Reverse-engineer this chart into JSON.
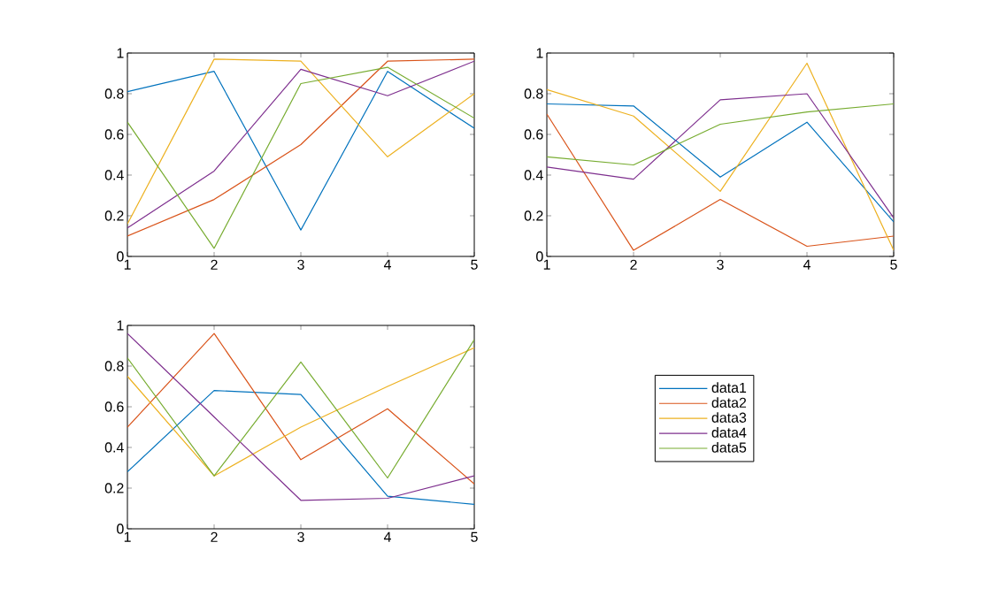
{
  "chart_data": [
    {
      "type": "line",
      "x": [
        1,
        2,
        3,
        4,
        5
      ],
      "xlim": [
        1,
        5
      ],
      "ylim": [
        0,
        1
      ],
      "xticks": [
        1,
        2,
        3,
        4,
        5
      ],
      "yticks": [
        0,
        0.2,
        0.4,
        0.6,
        0.8,
        1
      ],
      "line_style": "solid",
      "series": [
        {
          "color": "#0072bd",
          "values": [
            0.81,
            0.91,
            0.13,
            0.91,
            0.63
          ]
        },
        {
          "color": "#d95319",
          "values": [
            0.1,
            0.28,
            0.55,
            0.96,
            0.97
          ]
        },
        {
          "color": "#edb120",
          "values": [
            0.16,
            0.97,
            0.96,
            0.49,
            0.8
          ]
        },
        {
          "color": "#7e2f8e",
          "values": [
            0.14,
            0.42,
            0.92,
            0.79,
            0.96
          ]
        },
        {
          "color": "#77ac30",
          "values": [
            0.66,
            0.04,
            0.85,
            0.93,
            0.68
          ]
        }
      ]
    },
    {
      "type": "line",
      "x": [
        1,
        2,
        3,
        4,
        5
      ],
      "xlim": [
        1,
        5
      ],
      "ylim": [
        0,
        1
      ],
      "xticks": [
        1,
        2,
        3,
        4,
        5
      ],
      "yticks": [
        0,
        0.2,
        0.4,
        0.6,
        0.8,
        1
      ],
      "line_style": "solid",
      "series": [
        {
          "color": "#0072bd",
          "values": [
            0.75,
            0.74,
            0.39,
            0.66,
            0.17
          ]
        },
        {
          "color": "#d95319",
          "values": [
            0.7,
            0.03,
            0.28,
            0.05,
            0.1
          ]
        },
        {
          "color": "#edb120",
          "values": [
            0.82,
            0.69,
            0.32,
            0.95,
            0.03
          ]
        },
        {
          "color": "#7e2f8e",
          "values": [
            0.44,
            0.38,
            0.77,
            0.8,
            0.19
          ]
        },
        {
          "color": "#77ac30",
          "values": [
            0.49,
            0.45,
            0.65,
            0.71,
            0.75
          ]
        }
      ]
    },
    {
      "type": "line",
      "x": [
        1,
        2,
        3,
        4,
        5
      ],
      "xlim": [
        1,
        5
      ],
      "ylim": [
        0,
        1
      ],
      "xticks": [
        1,
        2,
        3,
        4,
        5
      ],
      "yticks": [
        0,
        0.2,
        0.4,
        0.6,
        0.8,
        1
      ],
      "line_style": "solid",
      "legend": "right",
      "series": [
        {
          "name": "data1",
          "color": "#0072bd",
          "values": [
            0.28,
            0.68,
            0.66,
            0.16,
            0.12
          ]
        },
        {
          "name": "data2",
          "color": "#d95319",
          "values": [
            0.5,
            0.96,
            0.34,
            0.59,
            0.22
          ]
        },
        {
          "name": "data3",
          "color": "#edb120",
          "values": [
            0.75,
            0.26,
            0.5,
            0.7,
            0.89
          ]
        },
        {
          "name": "data4",
          "color": "#7e2f8e",
          "values": [
            0.96,
            0.55,
            0.14,
            0.15,
            0.26
          ]
        },
        {
          "name": "data5",
          "color": "#77ac30",
          "values": [
            0.84,
            0.26,
            0.82,
            0.25,
            0.93
          ]
        }
      ]
    }
  ]
}
